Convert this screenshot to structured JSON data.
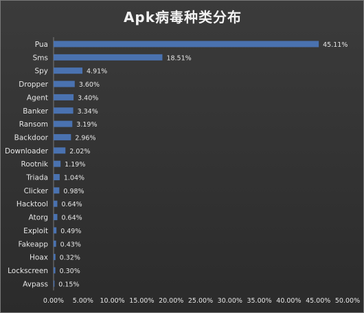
{
  "chart_data": {
    "type": "bar",
    "orientation": "horizontal",
    "title": "Apk病毒种类分布",
    "xlabel": "",
    "ylabel": "",
    "xlim": [
      0,
      50
    ],
    "x_ticks": [
      "0.00%",
      "5.00%",
      "10.00%",
      "15.00%",
      "20.00%",
      "25.00%",
      "30.00%",
      "35.00%",
      "40.00%",
      "45.00%",
      "50.00%"
    ],
    "grid": true,
    "legend": "none",
    "categories": [
      "Pua",
      "Sms",
      "Spy",
      "Dropper",
      "Agent",
      "Banker",
      "Ransom",
      "Backdoor",
      "Downloader",
      "Rootnik",
      "Triada",
      "Clicker",
      "Hacktool",
      "Atorg",
      "Exploit",
      "Fakeapp",
      "Hoax",
      "Lockscreen",
      "Avpass"
    ],
    "values": [
      45.11,
      18.51,
      4.91,
      3.6,
      3.4,
      3.34,
      3.19,
      2.96,
      2.02,
      1.19,
      1.04,
      0.98,
      0.64,
      0.64,
      0.49,
      0.43,
      0.32,
      0.3,
      0.15
    ],
    "value_labels": [
      "45.11%",
      "18.51%",
      "4.91%",
      "3.60%",
      "3.40%",
      "3.34%",
      "3.19%",
      "2.96%",
      "2.02%",
      "1.19%",
      "1.04%",
      "0.98%",
      "0.64%",
      "0.64%",
      "0.49%",
      "0.43%",
      "0.32%",
      "0.30%",
      "0.15%"
    ],
    "colors": {
      "background": "#353535",
      "bar": "#4a72b0",
      "text": "#e6e6e6",
      "grid": "#5a5a5a"
    }
  }
}
